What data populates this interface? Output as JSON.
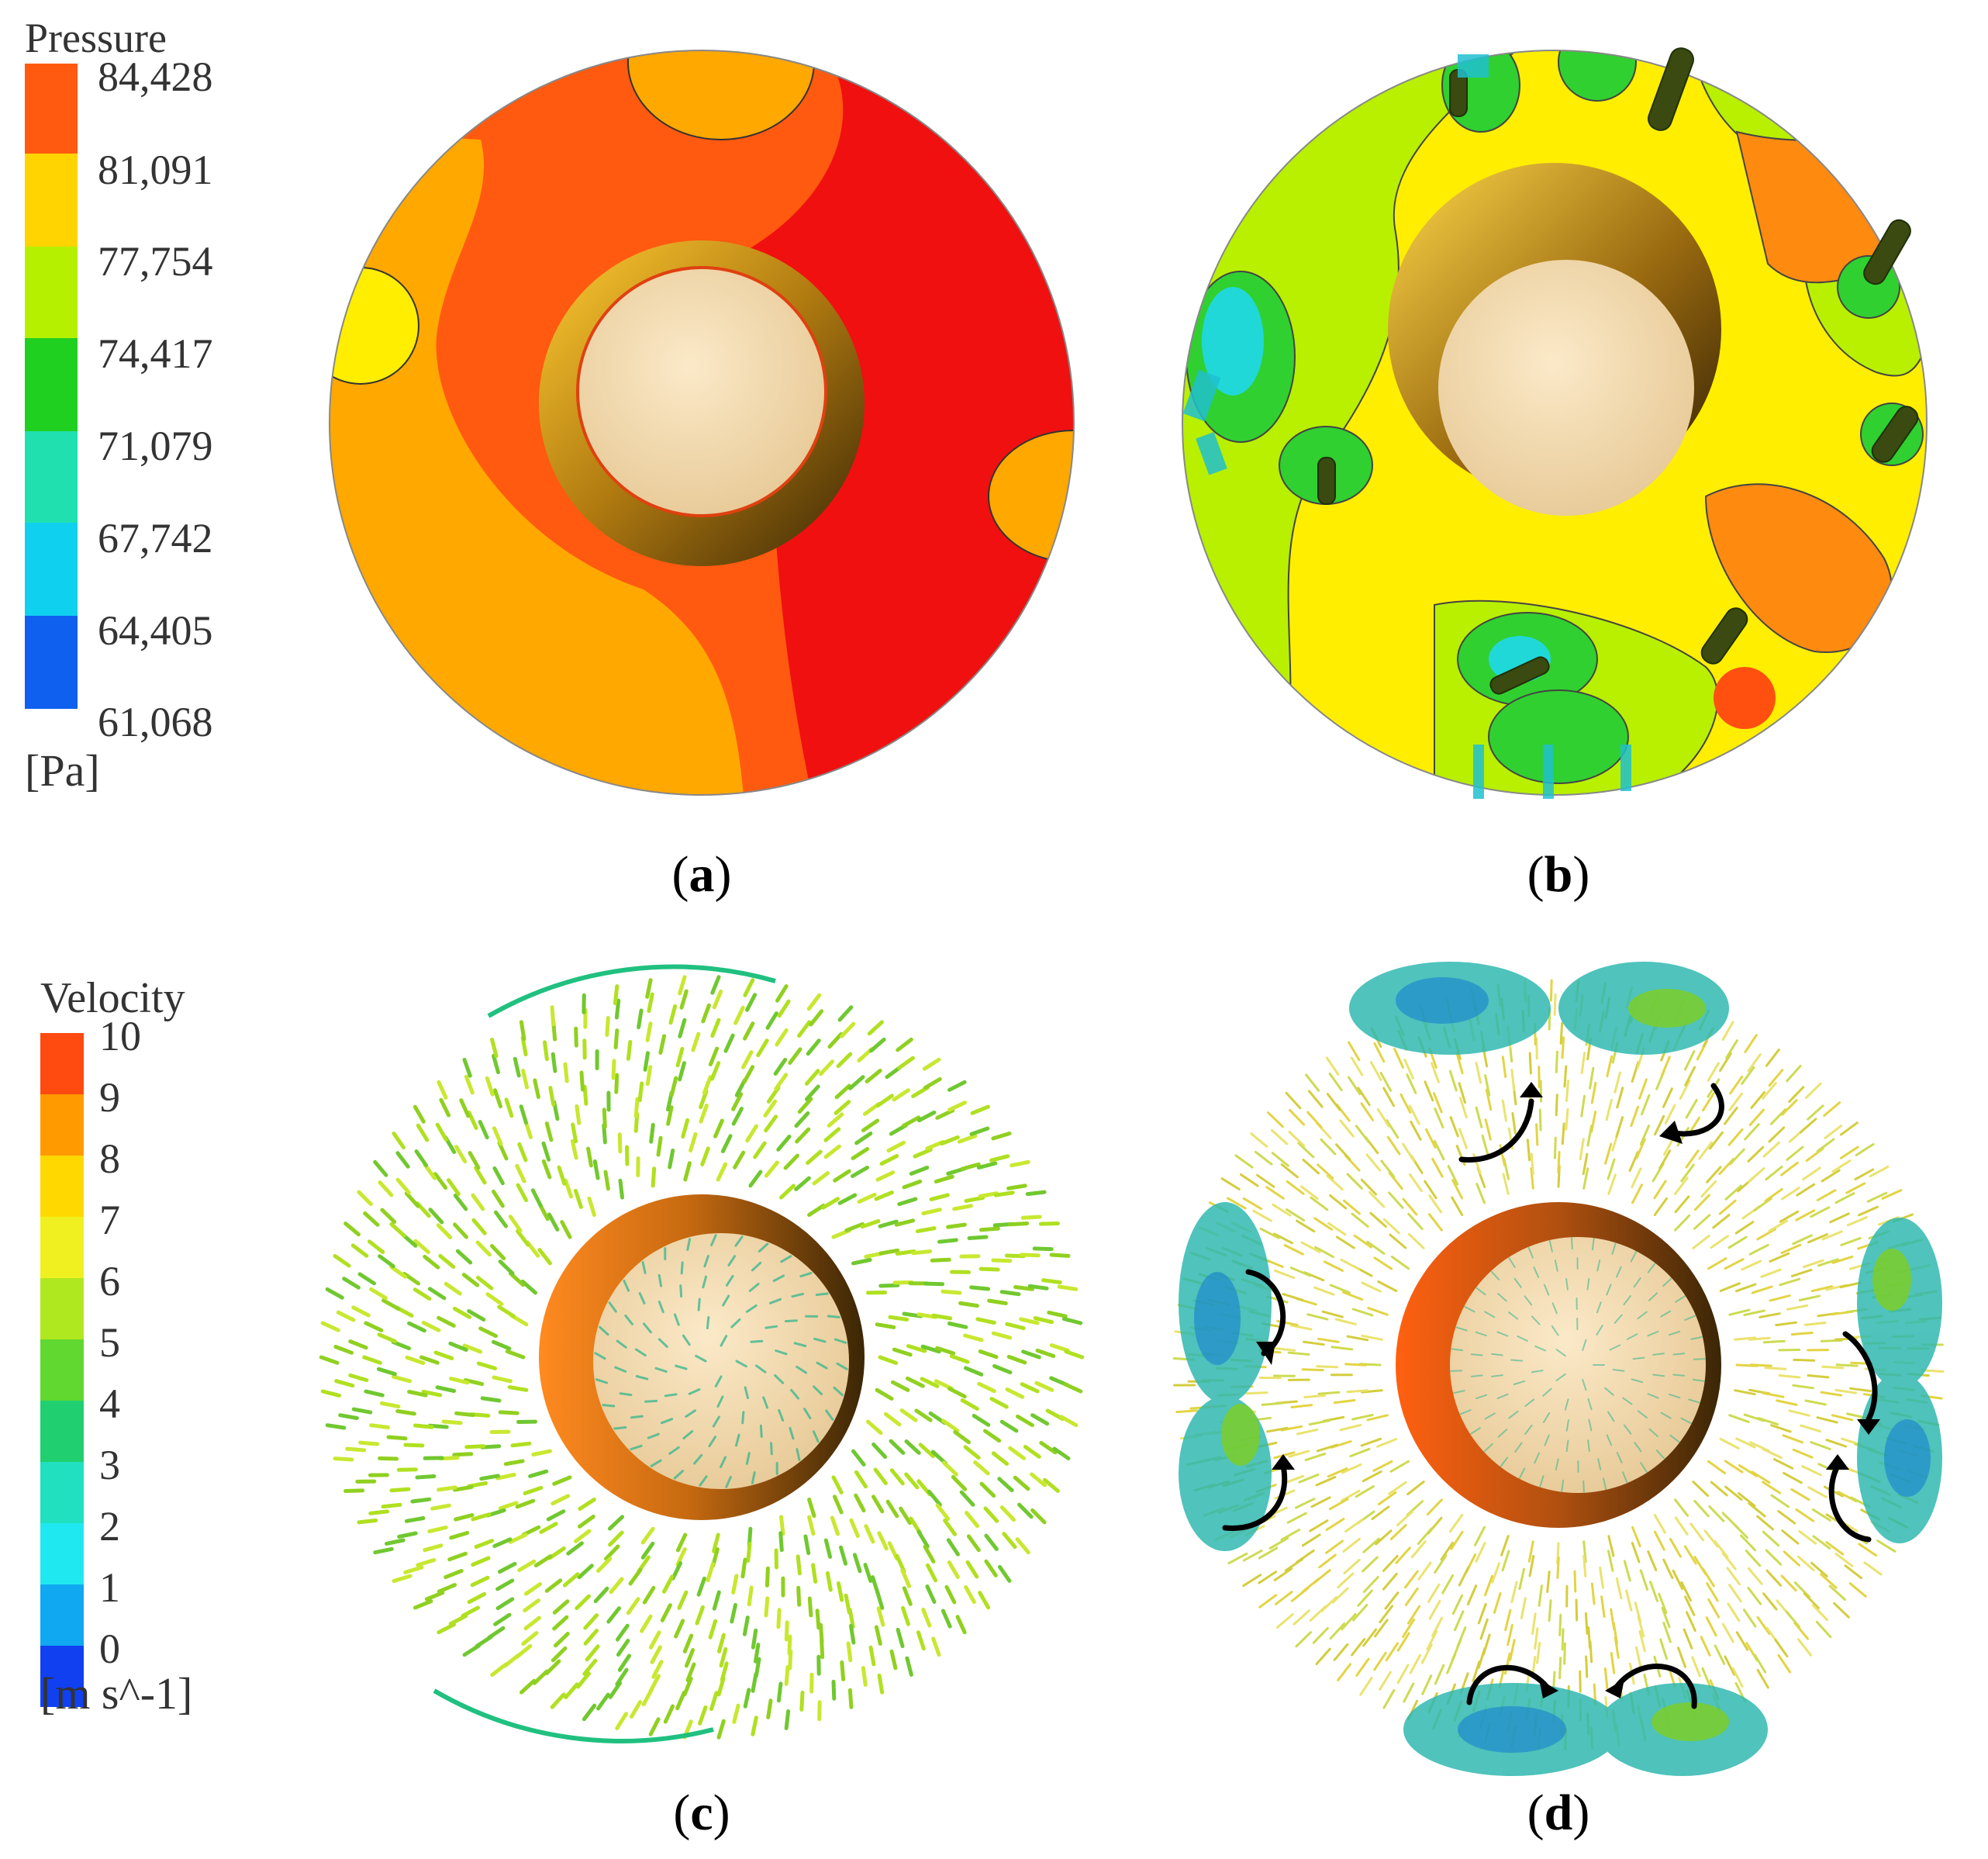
{
  "panels": {
    "a": {
      "label": "a"
    },
    "b": {
      "label": "b"
    },
    "c": {
      "label": "c"
    },
    "d": {
      "label": "d"
    }
  },
  "pressure_legend": {
    "title": "Pressure",
    "unit": "[Pa]",
    "ticks": [
      "84,428",
      "81,091",
      "77,754",
      "74,417",
      "71,079",
      "67,742",
      "64,405",
      "61,068"
    ],
    "colors": [
      "#ff5a10",
      "#ffd400",
      "#b4f000",
      "#20d020",
      "#20e0b0",
      "#10d0f0",
      "#1060f0"
    ]
  },
  "velocity_legend": {
    "title": "Velocity",
    "unit": "[m s^-1]",
    "ticks": [
      "10",
      "9",
      "8",
      "7",
      "6",
      "5",
      "4",
      "3",
      "2",
      "1",
      "0"
    ],
    "colors": [
      "#ff4a10",
      "#ff9a00",
      "#ffd800",
      "#f0f020",
      "#b0e820",
      "#60d830",
      "#20d070",
      "#20e0c0",
      "#20e8f0",
      "#10a8f0",
      "#1040f0"
    ]
  },
  "colors": {
    "red": "#f01010",
    "orange_red": "#ff5010",
    "orange": "#ffa800",
    "yellow": "#ffee00",
    "yellow_green": "#b8f000",
    "green": "#30d030",
    "cyan": "#20d8d8",
    "hub_light": "#f5ddb0",
    "hub_dark": "#6a4a10"
  }
}
